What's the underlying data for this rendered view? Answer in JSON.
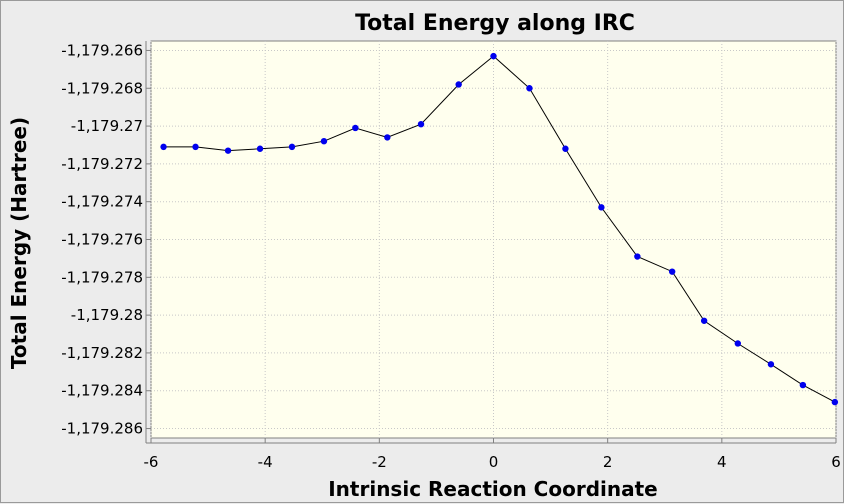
{
  "chart_data": {
    "type": "line",
    "title": "Total Energy along IRC",
    "xlabel": "Intrinsic Reaction Coordinate",
    "ylabel": "Total Energy (Hartree)",
    "xlim": [
      -6,
      6
    ],
    "ylim": [
      -1179.2865,
      -1179.2655
    ],
    "grid": true,
    "legend": "none",
    "x_ticks": [
      {
        "value": -6,
        "label": "-6"
      },
      {
        "value": -4,
        "label": "-4"
      },
      {
        "value": -2,
        "label": "-2"
      },
      {
        "value": 0,
        "label": "0"
      },
      {
        "value": 2,
        "label": "2"
      },
      {
        "value": 4,
        "label": "4"
      },
      {
        "value": 6,
        "label": "6"
      }
    ],
    "y_ticks": [
      {
        "value": -1179.266,
        "label": "-1,179.266"
      },
      {
        "value": -1179.268,
        "label": "-1,179.268"
      },
      {
        "value": -1179.27,
        "label": "-1,179.27"
      },
      {
        "value": -1179.272,
        "label": "-1,179.272"
      },
      {
        "value": -1179.274,
        "label": "-1,179.274"
      },
      {
        "value": -1179.276,
        "label": "-1,179.276"
      },
      {
        "value": -1179.278,
        "label": "-1,179.278"
      },
      {
        "value": -1179.28,
        "label": "-1,179.28"
      },
      {
        "value": -1179.282,
        "label": "-1,179.282"
      },
      {
        "value": -1179.284,
        "label": "-1,179.284"
      },
      {
        "value": -1179.286,
        "label": "-1,179.286"
      }
    ],
    "series": [
      {
        "color": "#0000ee",
        "line_color": "#000000",
        "x": [
          -5.78,
          -5.22,
          -4.65,
          -4.09,
          -3.53,
          -2.97,
          -2.42,
          -1.86,
          -1.27,
          -0.61,
          0.0,
          0.63,
          1.26,
          1.89,
          2.52,
          3.13,
          3.69,
          4.28,
          4.86,
          5.42,
          5.98
        ],
        "y": [
          -1179.2711,
          -1179.2711,
          -1179.2713,
          -1179.2712,
          -1179.2711,
          -1179.2708,
          -1179.2701,
          -1179.2706,
          -1179.2699,
          -1179.2678,
          -1179.2663,
          -1179.268,
          -1179.2712,
          -1179.2743,
          -1179.2769,
          -1179.2777,
          -1179.2803,
          -1179.2815,
          -1179.2826,
          -1179.2837,
          -1179.2846
        ]
      }
    ]
  }
}
